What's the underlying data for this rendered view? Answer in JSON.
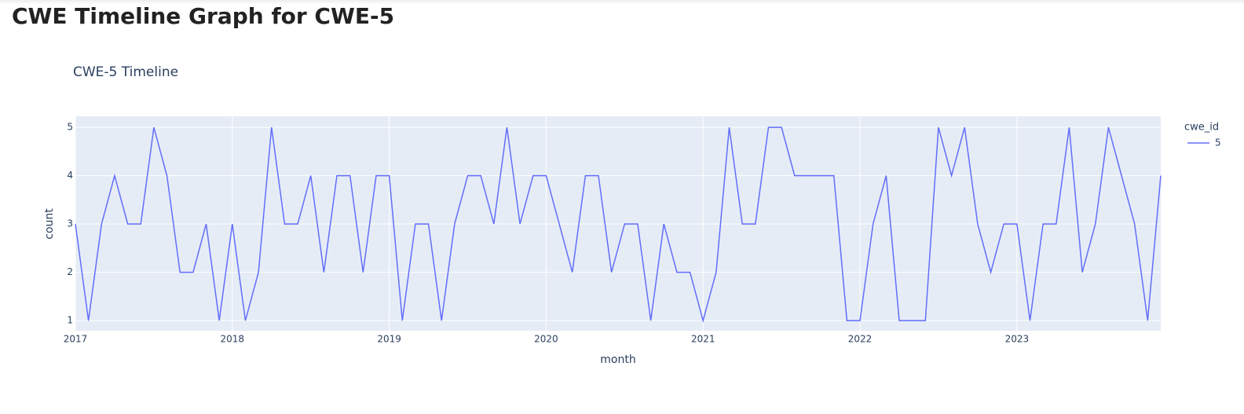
{
  "page": {
    "heading": "CWE Timeline Graph for CWE-5"
  },
  "chart_data": {
    "type": "line",
    "title": "CWE-5 Timeline",
    "x_label": "month",
    "y_label": "count",
    "legend_title": "cwe_id",
    "x": [
      "2017-01",
      "2017-02",
      "2017-03",
      "2017-04",
      "2017-05",
      "2017-06",
      "2017-07",
      "2017-08",
      "2017-09",
      "2017-10",
      "2017-11",
      "2017-12",
      "2018-01",
      "2018-02",
      "2018-03",
      "2018-04",
      "2018-05",
      "2018-06",
      "2018-07",
      "2018-08",
      "2018-09",
      "2018-10",
      "2018-11",
      "2018-12",
      "2019-01",
      "2019-02",
      "2019-03",
      "2019-04",
      "2019-05",
      "2019-06",
      "2019-07",
      "2019-08",
      "2019-09",
      "2019-10",
      "2019-11",
      "2019-12",
      "2020-01",
      "2020-02",
      "2020-03",
      "2020-04",
      "2020-05",
      "2020-06",
      "2020-07",
      "2020-08",
      "2020-09",
      "2020-10",
      "2020-11",
      "2020-12",
      "2021-01",
      "2021-02",
      "2021-03",
      "2021-04",
      "2021-05",
      "2021-06",
      "2021-07",
      "2021-08",
      "2021-09",
      "2021-10",
      "2021-11",
      "2021-12",
      "2022-01",
      "2022-02",
      "2022-03",
      "2022-04",
      "2022-05",
      "2022-06",
      "2022-07",
      "2022-08",
      "2022-09",
      "2022-10",
      "2022-11",
      "2022-12",
      "2023-01",
      "2023-02",
      "2023-03",
      "2023-04",
      "2023-05",
      "2023-06",
      "2023-07",
      "2023-08",
      "2023-09",
      "2023-10",
      "2023-11",
      "2023-12"
    ],
    "series": [
      {
        "name": "5",
        "color": "#636efa",
        "values": [
          3,
          1,
          3,
          4,
          3,
          3,
          5,
          4,
          2,
          2,
          3,
          1,
          3,
          1,
          2,
          5,
          3,
          3,
          4,
          2,
          4,
          4,
          2,
          4,
          4,
          1,
          3,
          3,
          1,
          3,
          4,
          4,
          3,
          5,
          3,
          4,
          4,
          3,
          2,
          4,
          4,
          2,
          3,
          3,
          1,
          3,
          2,
          2,
          1,
          2,
          5,
          3,
          3,
          5,
          5,
          4,
          4,
          4,
          4,
          1,
          1,
          3,
          4,
          1,
          1,
          1,
          5,
          4,
          5,
          3,
          2,
          3,
          3,
          1,
          3,
          3,
          5,
          2,
          3,
          5,
          4,
          3,
          1,
          4
        ]
      }
    ],
    "xlim": [
      "2017-01",
      "2023-12"
    ],
    "xticks": [
      {
        "value": "2017-01",
        "label": "2017"
      },
      {
        "value": "2018-01",
        "label": "2018"
      },
      {
        "value": "2019-01",
        "label": "2019"
      },
      {
        "value": "2020-01",
        "label": "2020"
      },
      {
        "value": "2021-01",
        "label": "2021"
      },
      {
        "value": "2022-01",
        "label": "2022"
      },
      {
        "value": "2023-01",
        "label": "2023"
      }
    ],
    "ylim": [
      0.79,
      5.23
    ],
    "yticks": [
      1,
      2,
      3,
      4,
      5
    ],
    "grid": true
  }
}
